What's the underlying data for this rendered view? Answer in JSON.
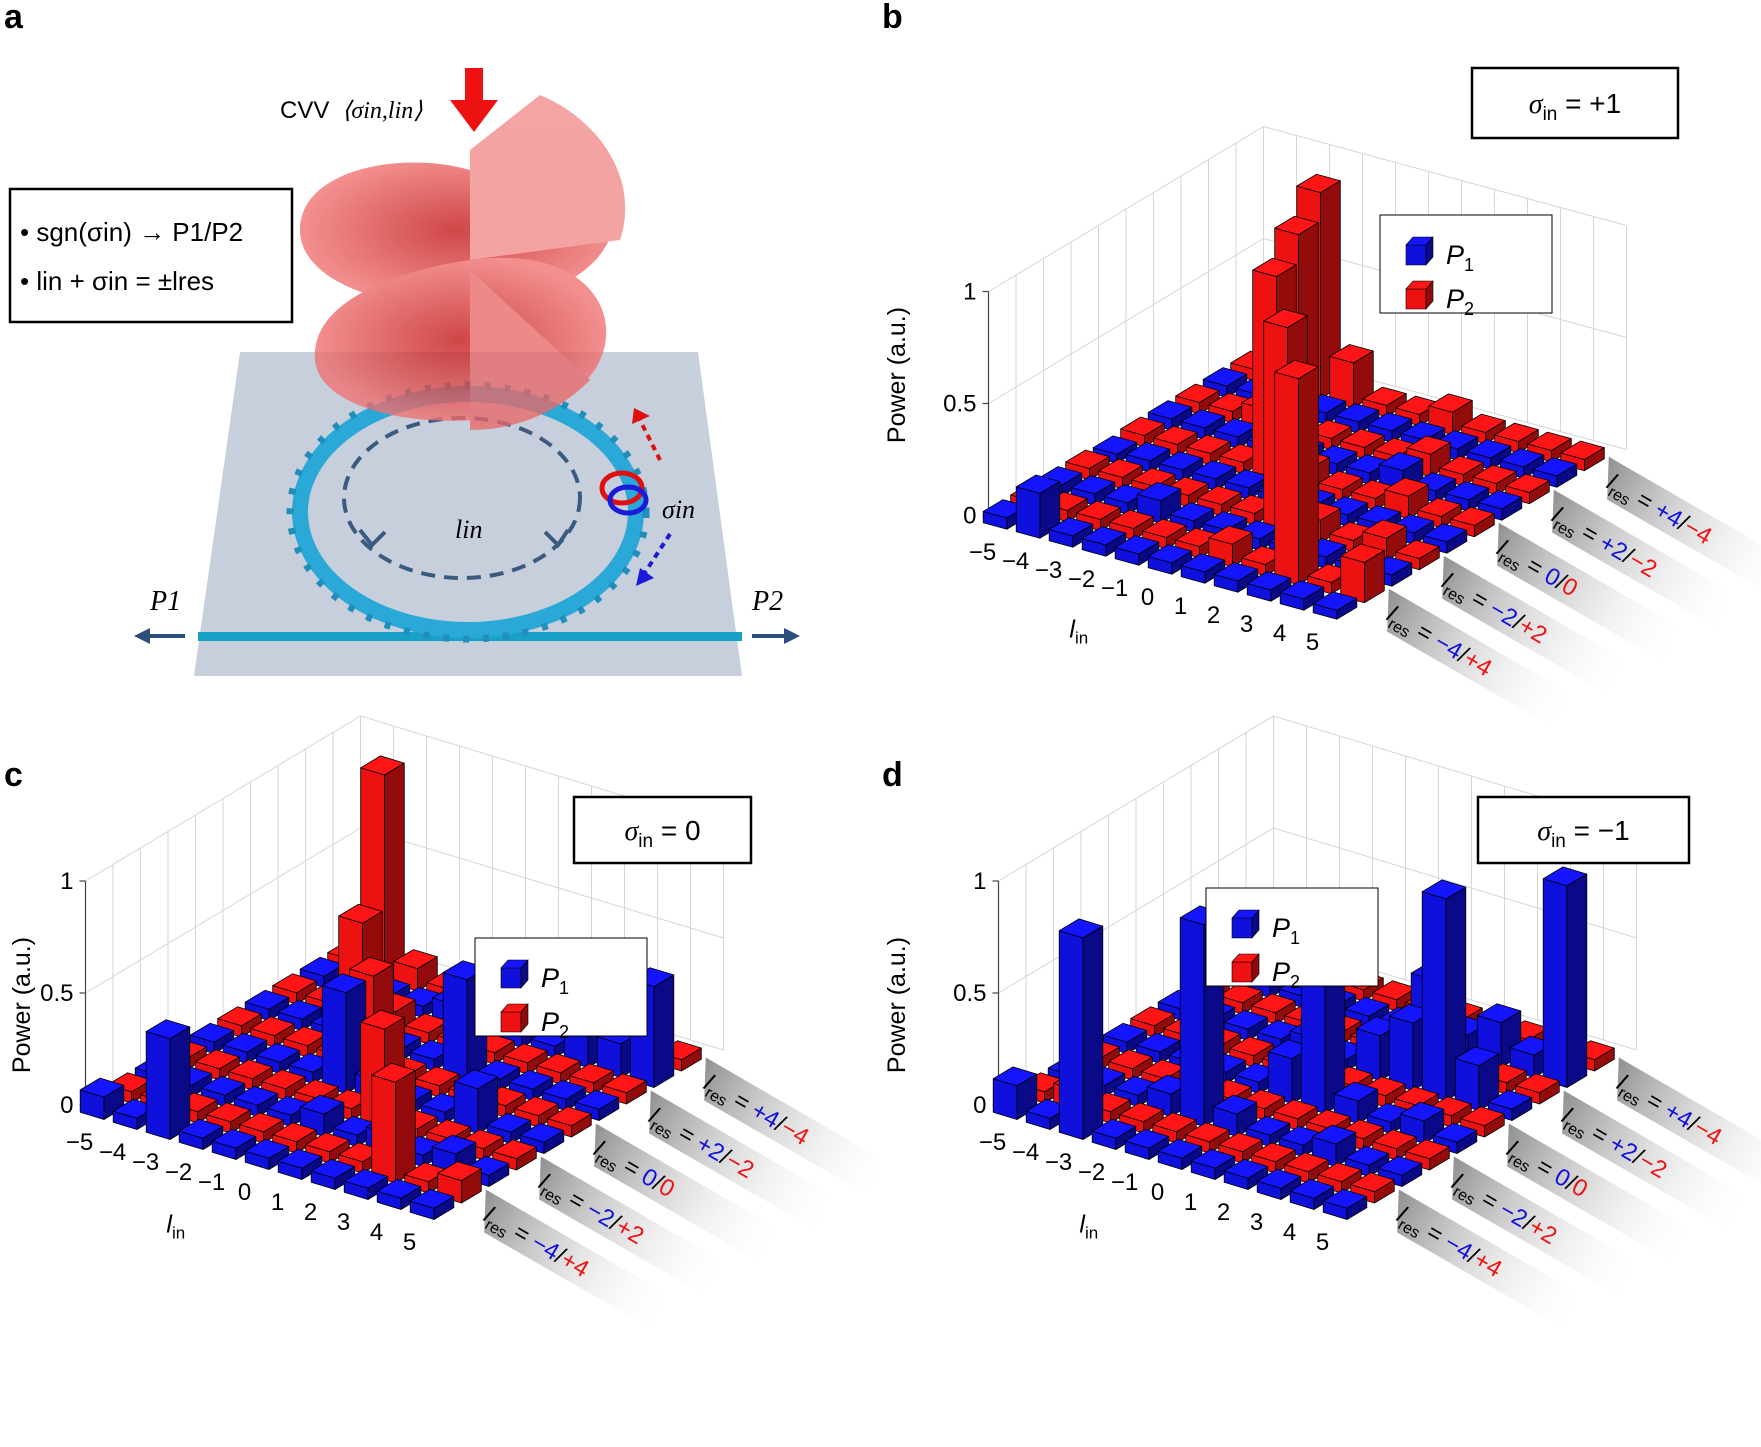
{
  "colors": {
    "p1": "#1010dd",
    "p2": "#ee1111",
    "light_red": "#e85a5a",
    "ring": "#2aa8d8",
    "waveguide": "#17a0c8",
    "chip": "#c7cfdc",
    "dashed": "#3a5a80",
    "label_fade": "#9a9a9a"
  },
  "panel_a": {
    "label": "a",
    "cvv_label": "CVV",
    "cvv_args": "⟨σin,lin⟩",
    "rule_1": "• sgn(σin) → P1/P2",
    "rule_2": "• lin + σin = ±lres",
    "ring_label": "lin",
    "sigma_label": "σin",
    "port_left": "P1",
    "port_right": "P2"
  },
  "chart_data": [
    {
      "id": "b",
      "type": "bar3d",
      "panel_label": "b",
      "title_box": "σin = +1",
      "zlabel": "Power (a.u.)",
      "xlabel": "lin",
      "x": [
        -5,
        -4,
        -3,
        -2,
        -1,
        0,
        1,
        2,
        3,
        4,
        5
      ],
      "z_ticks": [
        "0",
        "0.5",
        "1"
      ],
      "zlim": [
        0,
        1
      ],
      "rows": [
        "lres = -4/+4",
        "lres = -2/+2",
        "lres = 0/0",
        "lres = +2/-2",
        "lres = +4/-4"
      ],
      "legend": [
        "P1",
        "P2"
      ],
      "series": [
        {
          "name": "P1",
          "values": [
            [
              0.05,
              0.2,
              0.05,
              0.05,
              0.05,
              0.05,
              0.05,
              0.05,
              0.05,
              0.05,
              0.04
            ],
            [
              0.05,
              0.05,
              0.05,
              0.1,
              0.05,
              0.05,
              0.05,
              0.05,
              0.05,
              0.05,
              0.05
            ],
            [
              0.04,
              0.05,
              0.05,
              0.05,
              0.05,
              0.05,
              0.05,
              0.05,
              0.05,
              0.05,
              0.05
            ],
            [
              0.05,
              0.05,
              0.05,
              0.05,
              0.05,
              0.05,
              0.05,
              0.1,
              0.05,
              0.05,
              0.05
            ],
            [
              0.05,
              0.05,
              0.05,
              0.05,
              0.05,
              0.05,
              0.05,
              0.05,
              0.05,
              0.05,
              0.05
            ]
          ]
        },
        {
          "name": "P2",
          "values": [
            [
              0.05,
              0.05,
              0.05,
              0.05,
              0.05,
              0.05,
              0.1,
              0.05,
              0.92,
              0.05,
              0.18
            ],
            [
              0.05,
              0.05,
              0.05,
              0.05,
              0.05,
              0.05,
              0.92,
              0.1,
              0.05,
              0.1,
              0.05
            ],
            [
              0.05,
              0.05,
              0.05,
              0.05,
              0.92,
              0.1,
              0.05,
              0.05,
              0.1,
              0.05,
              0.05
            ],
            [
              0.05,
              0.05,
              0.1,
              0.92,
              0.05,
              0.05,
              0.05,
              0.1,
              0.05,
              0.05,
              0.05
            ],
            [
              0.05,
              0.1,
              0.92,
              0.2,
              0.05,
              0.05,
              0.1,
              0.05,
              0.05,
              0.05,
              0.05
            ]
          ]
        }
      ]
    },
    {
      "id": "c",
      "type": "bar3d",
      "panel_label": "c",
      "title_box": "σin = 0",
      "zlabel": "Power (a.u.)",
      "xlabel": "lin",
      "x": [
        -5,
        -4,
        -3,
        -2,
        -1,
        0,
        1,
        2,
        3,
        4,
        5
      ],
      "z_ticks": [
        "0",
        "0.5",
        "1"
      ],
      "zlim": [
        0,
        1
      ],
      "rows": [
        "lres = -4/+4",
        "lres = -2/+2",
        "lres = 0/0",
        "lres = +2/-2",
        "lres = +4/-4"
      ],
      "legend": [
        "P1",
        "P2"
      ],
      "series": [
        {
          "name": "P1",
          "values": [
            [
              0.1,
              0.05,
              0.45,
              0.05,
              0.05,
              0.05,
              0.05,
              0.05,
              0.05,
              0.05,
              0.05
            ],
            [
              0.05,
              0.05,
              0.05,
              0.05,
              0.05,
              0.1,
              0.05,
              0.1,
              0.05,
              0.1,
              0.05
            ],
            [
              0.05,
              0.05,
              0.05,
              0.05,
              0.45,
              0.1,
              0.05,
              0.05,
              0.2,
              0.05,
              0.05
            ],
            [
              0.05,
              0.05,
              0.05,
              0.05,
              0.05,
              0.05,
              0.45,
              0.05,
              0.05,
              0.05,
              0.05
            ],
            [
              0.05,
              0.05,
              0.05,
              0.05,
              0.1,
              0.05,
              0.05,
              0.05,
              0.45,
              0.15,
              0.45
            ]
          ]
        },
        {
          "name": "P2",
          "values": [
            [
              0.05,
              0.05,
              0.05,
              0.05,
              0.05,
              0.05,
              0.05,
              0.05,
              0.45,
              0.05,
              0.1
            ],
            [
              0.05,
              0.05,
              0.05,
              0.05,
              0.05,
              0.05,
              0.45,
              0.05,
              0.05,
              0.05,
              0.05
            ],
            [
              0.05,
              0.05,
              0.05,
              0.05,
              0.45,
              0.05,
              0.05,
              0.05,
              0.05,
              0.05,
              0.05
            ],
            [
              0.05,
              0.05,
              0.45,
              0.1,
              0.05,
              0.05,
              0.05,
              0.05,
              0.05,
              0.05,
              0.05
            ],
            [
              0.05,
              0.92,
              0.1,
              0.05,
              0.05,
              0.05,
              0.05,
              0.05,
              0.05,
              0.05,
              0.05
            ]
          ]
        }
      ]
    },
    {
      "id": "d",
      "type": "bar3d",
      "panel_label": "d",
      "title_box": "σin = −1",
      "zlabel": "Power (a.u.)",
      "xlabel": "lin",
      "x": [
        -5,
        -4,
        -3,
        -2,
        -1,
        0,
        1,
        2,
        3,
        4,
        5
      ],
      "z_ticks": [
        "0",
        "0.5",
        "1"
      ],
      "zlim": [
        0,
        1
      ],
      "rows": [
        "lres = -4/+4",
        "lres = -2/+2",
        "lres = 0/0",
        "lres = +2/-2",
        "lres = +4/-4"
      ],
      "legend": [
        "P1",
        "P2"
      ],
      "series": [
        {
          "name": "P1",
          "values": [
            [
              0.15,
              0.05,
              0.9,
              0.05,
              0.05,
              0.05,
              0.05,
              0.05,
              0.05,
              0.05,
              0.05
            ],
            [
              0.05,
              0.05,
              0.05,
              0.1,
              0.9,
              0.1,
              0.05,
              0.05,
              0.1,
              0.05,
              0.05
            ],
            [
              0.05,
              0.05,
              0.05,
              0.05,
              0.05,
              0.2,
              0.9,
              0.1,
              0.05,
              0.1,
              0.05
            ],
            [
              0.05,
              0.05,
              0.05,
              0.05,
              0.1,
              0.05,
              0.2,
              0.3,
              0.9,
              0.2,
              0.05
            ],
            [
              0.05,
              0.05,
              0.05,
              0.05,
              0.05,
              0.05,
              0.3,
              0.1,
              0.2,
              0.1,
              0.9
            ]
          ]
        },
        {
          "name": "P2",
          "values": [
            [
              0.05,
              0.1,
              0.05,
              0.05,
              0.05,
              0.05,
              0.05,
              0.05,
              0.05,
              0.05,
              0.05
            ],
            [
              0.05,
              0.05,
              0.05,
              0.05,
              0.05,
              0.05,
              0.05,
              0.05,
              0.05,
              0.05,
              0.05
            ],
            [
              0.05,
              0.05,
              0.05,
              0.05,
              0.05,
              0.05,
              0.05,
              0.05,
              0.05,
              0.05,
              0.05
            ],
            [
              0.05,
              0.05,
              0.05,
              0.05,
              0.05,
              0.05,
              0.05,
              0.05,
              0.05,
              0.05,
              0.05
            ],
            [
              0.05,
              0.05,
              0.05,
              0.05,
              0.05,
              0.05,
              0.05,
              0.05,
              0.05,
              0.05,
              0.05
            ]
          ]
        }
      ]
    }
  ]
}
